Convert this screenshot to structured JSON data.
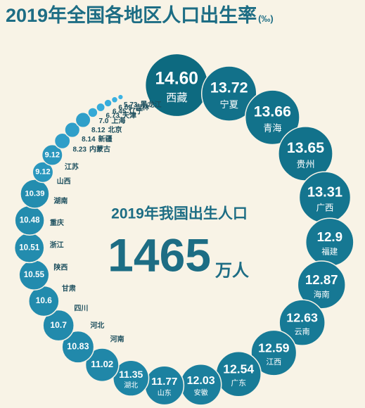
{
  "chart_data": {
    "type": "bubble-ring",
    "title": "2019年全国各地区人口出生率",
    "unit": "(‰)",
    "center_label": "2019年我国出生人口",
    "center_value": 1465,
    "center_unit": "万人",
    "categories": [
      "西藏",
      "宁夏",
      "青海",
      "贵州",
      "广西",
      "福建",
      "海南",
      "云南",
      "江西",
      "广东",
      "安徽",
      "山东",
      "湖北",
      "河南",
      "河北",
      "四川",
      "甘肃",
      "陕西",
      "浙江",
      "重庆",
      "湖南",
      "山西",
      "江苏",
      "内蒙古",
      "新疆",
      "北京",
      "上海",
      "天津",
      "辽宁",
      "吉林",
      "黑龙江"
    ],
    "values": [
      14.6,
      13.72,
      13.66,
      13.65,
      13.31,
      12.9,
      12.87,
      12.63,
      12.59,
      12.54,
      12.03,
      11.77,
      11.35,
      11.02,
      10.83,
      10.7,
      10.6,
      10.55,
      10.51,
      10.48,
      10.39,
      9.12,
      9.12,
      8.23,
      8.14,
      8.12,
      7.0,
      6.73,
      6.45,
      6.05,
      5.73
    ],
    "value_labels": [
      "14.60",
      "13.72",
      "13.66",
      "13.65",
      "13.31",
      "12.9",
      "12.87",
      "12.63",
      "12.59",
      "12.54",
      "12.03",
      "11.77",
      "11.35",
      "11.02",
      "10.83",
      "10.7",
      "10.6",
      "10.55",
      "10.51",
      "10.48",
      "10.39",
      "9.12",
      "9.12",
      "8.23",
      "8.14",
      "8.12",
      "7.0",
      "6.73",
      "6.45",
      "6.05",
      "5.73"
    ],
    "colors": [
      "#3cb3e4",
      "#0d6a80"
    ]
  }
}
